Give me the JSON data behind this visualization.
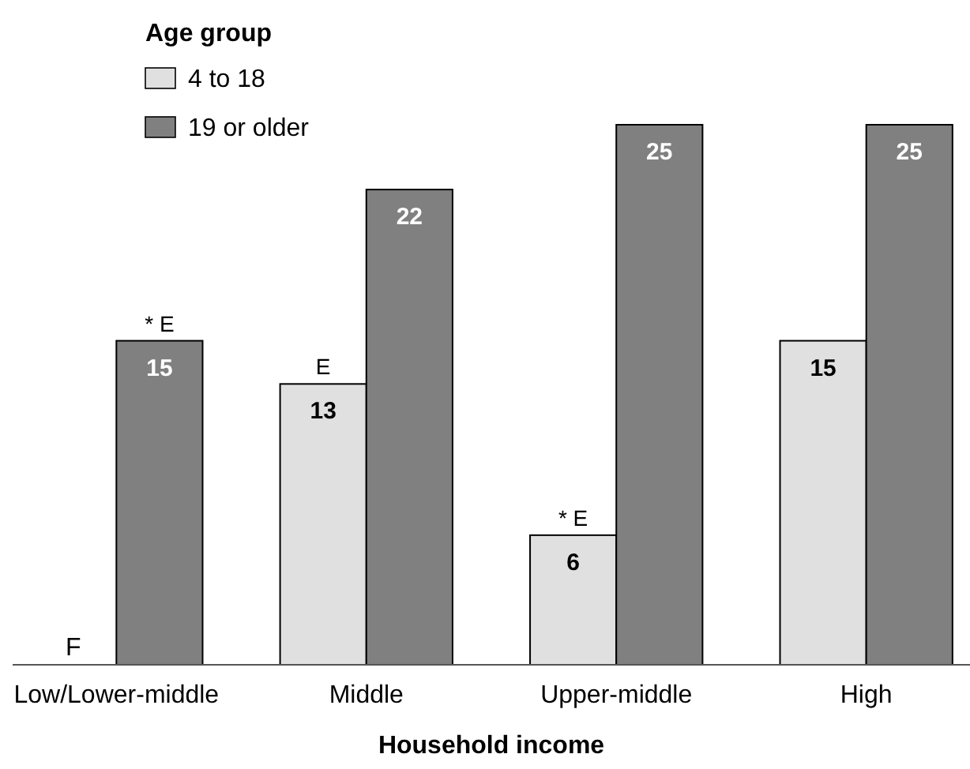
{
  "chart_data": {
    "type": "bar",
    "xlabel": "Household income",
    "legend_title": "Age group",
    "legend": "top left",
    "categories": [
      "Low/Lower-middle",
      "Middle",
      "Upper-middle",
      "High"
    ],
    "series": [
      {
        "name": "4 to 18",
        "color": "#e0e0e0",
        "values": [
          null,
          13,
          6,
          15
        ],
        "value_labels": [
          "F",
          "13",
          "6",
          "15"
        ]
      },
      {
        "name": "19 or older",
        "color": "#808080",
        "values": [
          15,
          22,
          25,
          25
        ],
        "value_labels": [
          "15",
          "22",
          "25",
          "25"
        ]
      }
    ],
    "annotations": [
      {
        "text": "* E",
        "x": "Low/Lower-middle",
        "y": 15
      },
      {
        "text": "E",
        "x": "Middle",
        "y": 13
      },
      {
        "text": "* E",
        "x": "Upper-middle",
        "y": 6
      }
    ]
  }
}
